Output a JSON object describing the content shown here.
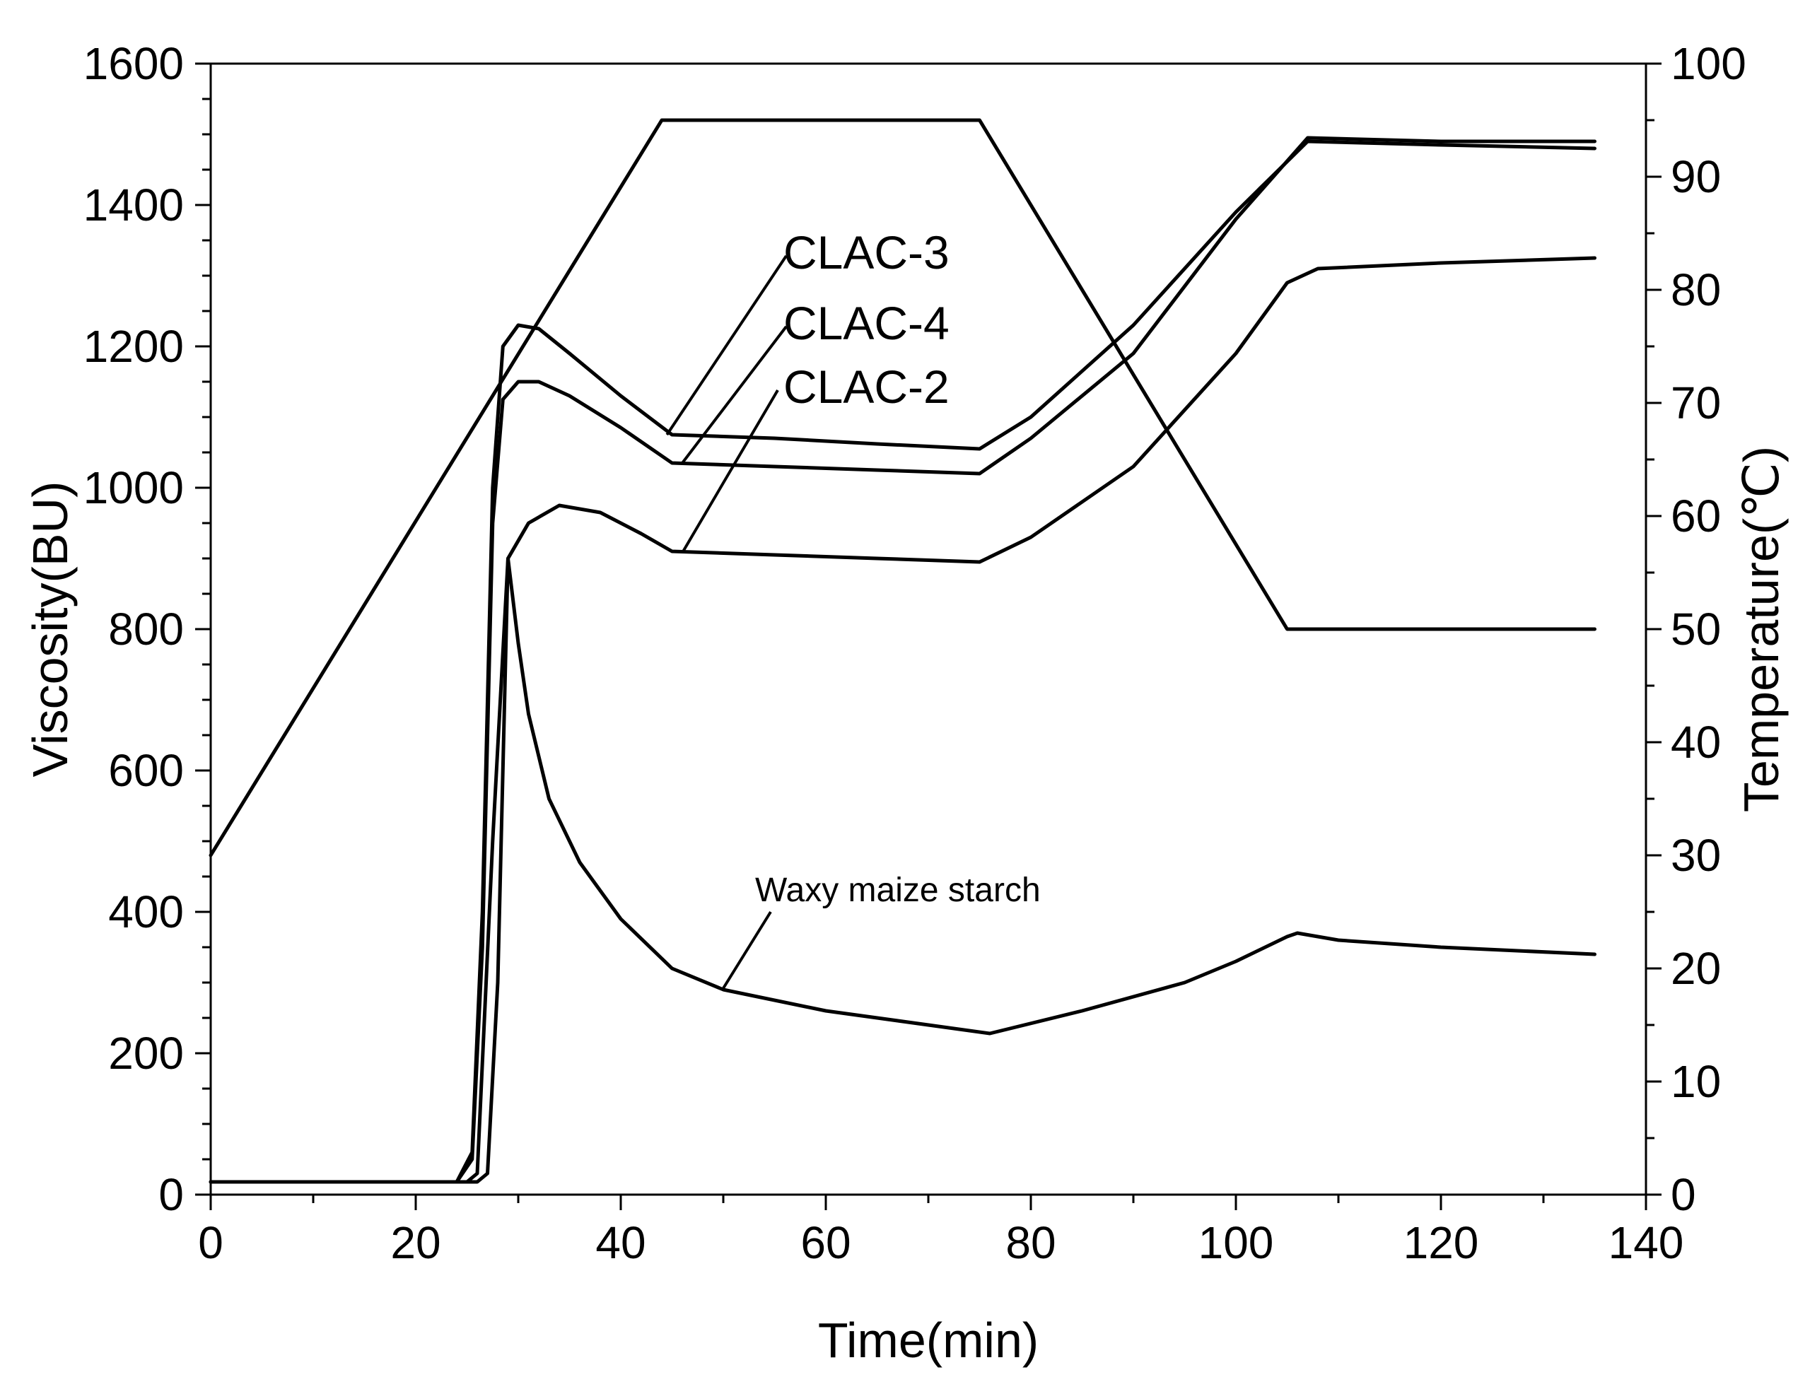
{
  "chart_data": {
    "type": "line",
    "title": "",
    "xlabel": "Time(min)",
    "ylabel_left": "Viscosity(BU)",
    "ylabel_right": "Temperature(℃)",
    "xlim": [
      0,
      140
    ],
    "ylim_left": [
      0,
      1600
    ],
    "ylim_right": [
      0,
      100
    ],
    "x_ticks": [
      0,
      20,
      40,
      60,
      80,
      100,
      120,
      140
    ],
    "y_left_ticks": [
      0,
      200,
      400,
      600,
      800,
      1000,
      1200,
      1400,
      1600
    ],
    "y_right_ticks": [
      0,
      10,
      20,
      30,
      40,
      50,
      60,
      70,
      80,
      90,
      100
    ],
    "grid": false,
    "series": [
      {
        "name": "Temperature",
        "axis": "right",
        "x": [
          0,
          44,
          75,
          105,
          135
        ],
        "y": [
          30,
          95,
          95,
          50,
          50
        ]
      },
      {
        "name": "CLAC-3",
        "axis": "left",
        "x": [
          0,
          24,
          25.5,
          26.5,
          27.5,
          28.5,
          30,
          32,
          35,
          40,
          45,
          55,
          65,
          75,
          80,
          90,
          100,
          107,
          120,
          135
        ],
        "y": [
          18,
          18,
          60,
          400,
          1000,
          1200,
          1230,
          1225,
          1190,
          1130,
          1075,
          1070,
          1062,
          1055,
          1100,
          1230,
          1390,
          1490,
          1485,
          1480
        ]
      },
      {
        "name": "CLAC-4",
        "axis": "left",
        "x": [
          0,
          24,
          25.5,
          26.5,
          27.5,
          28.5,
          30,
          32,
          35,
          40,
          45,
          55,
          65,
          75,
          80,
          90,
          100,
          107,
          120,
          135
        ],
        "y": [
          18,
          18,
          50,
          350,
          950,
          1125,
          1150,
          1150,
          1130,
          1085,
          1035,
          1030,
          1025,
          1020,
          1070,
          1190,
          1380,
          1495,
          1490,
          1490
        ]
      },
      {
        "name": "CLAC-2",
        "axis": "left",
        "x": [
          0,
          25,
          26,
          27.5,
          29,
          31,
          34,
          38,
          42,
          45,
          55,
          65,
          75,
          80,
          90,
          100,
          105,
          108,
          120,
          135
        ],
        "y": [
          18,
          18,
          30,
          500,
          900,
          950,
          975,
          965,
          935,
          910,
          905,
          900,
          895,
          930,
          1030,
          1190,
          1290,
          1310,
          1318,
          1325
        ]
      },
      {
        "name": "Waxy maize starch",
        "axis": "left",
        "x": [
          0,
          26,
          27,
          28,
          29,
          30,
          31,
          33,
          36,
          40,
          45,
          50,
          60,
          70,
          76,
          85,
          95,
          100,
          105,
          106,
          110,
          120,
          135
        ],
        "y": [
          18,
          18,
          30,
          300,
          900,
          780,
          680,
          560,
          470,
          390,
          320,
          290,
          260,
          240,
          228,
          260,
          300,
          330,
          365,
          370,
          360,
          350,
          340
        ]
      }
    ],
    "annotations": [
      {
        "text": "CLAC-3",
        "points_to": [
          44.5,
          1075
        ]
      },
      {
        "text": "CLAC-4",
        "points_to": [
          46,
          1035
        ]
      },
      {
        "text": "CLAC-2",
        "points_to": [
          46,
          908
        ]
      },
      {
        "text": "Waxy maize starch",
        "points_to": [
          50,
          292
        ]
      }
    ]
  }
}
